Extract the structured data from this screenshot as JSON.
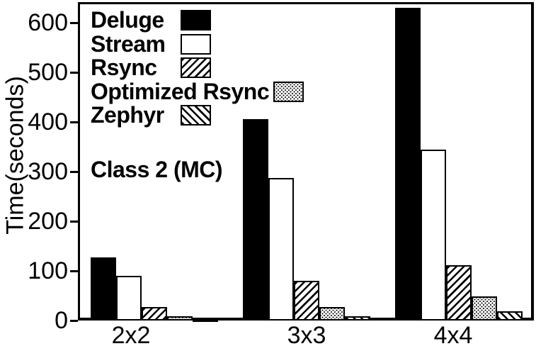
{
  "chart_data": {
    "type": "bar",
    "annotation": "Class 2 (MC)",
    "ylabel": "Time(seconds)",
    "xlabel": "",
    "categories": [
      "2x2",
      "3x3",
      "4x4"
    ],
    "series": [
      {
        "name": "Deluge",
        "pattern": "solid",
        "values": [
          127,
          405,
          630
        ]
      },
      {
        "name": "Stream",
        "pattern": "white",
        "values": [
          90,
          287,
          345
        ]
      },
      {
        "name": "Rsync",
        "pattern": "diag-forward",
        "values": [
          27,
          80,
          111
        ]
      },
      {
        "name": "Optimized Rsync",
        "pattern": "dots",
        "values": [
          8,
          27,
          49
        ]
      },
      {
        "name": "Zephyr",
        "pattern": "diag-back",
        "values": [
          3,
          9,
          18
        ]
      }
    ],
    "yticks": [
      0,
      100,
      200,
      300,
      400,
      500,
      600
    ],
    "ylim": [
      0,
      643
    ],
    "grid": false,
    "legend_position": "top-left",
    "colors": {
      "foreground": "#000000",
      "background": "#ffffff"
    }
  }
}
